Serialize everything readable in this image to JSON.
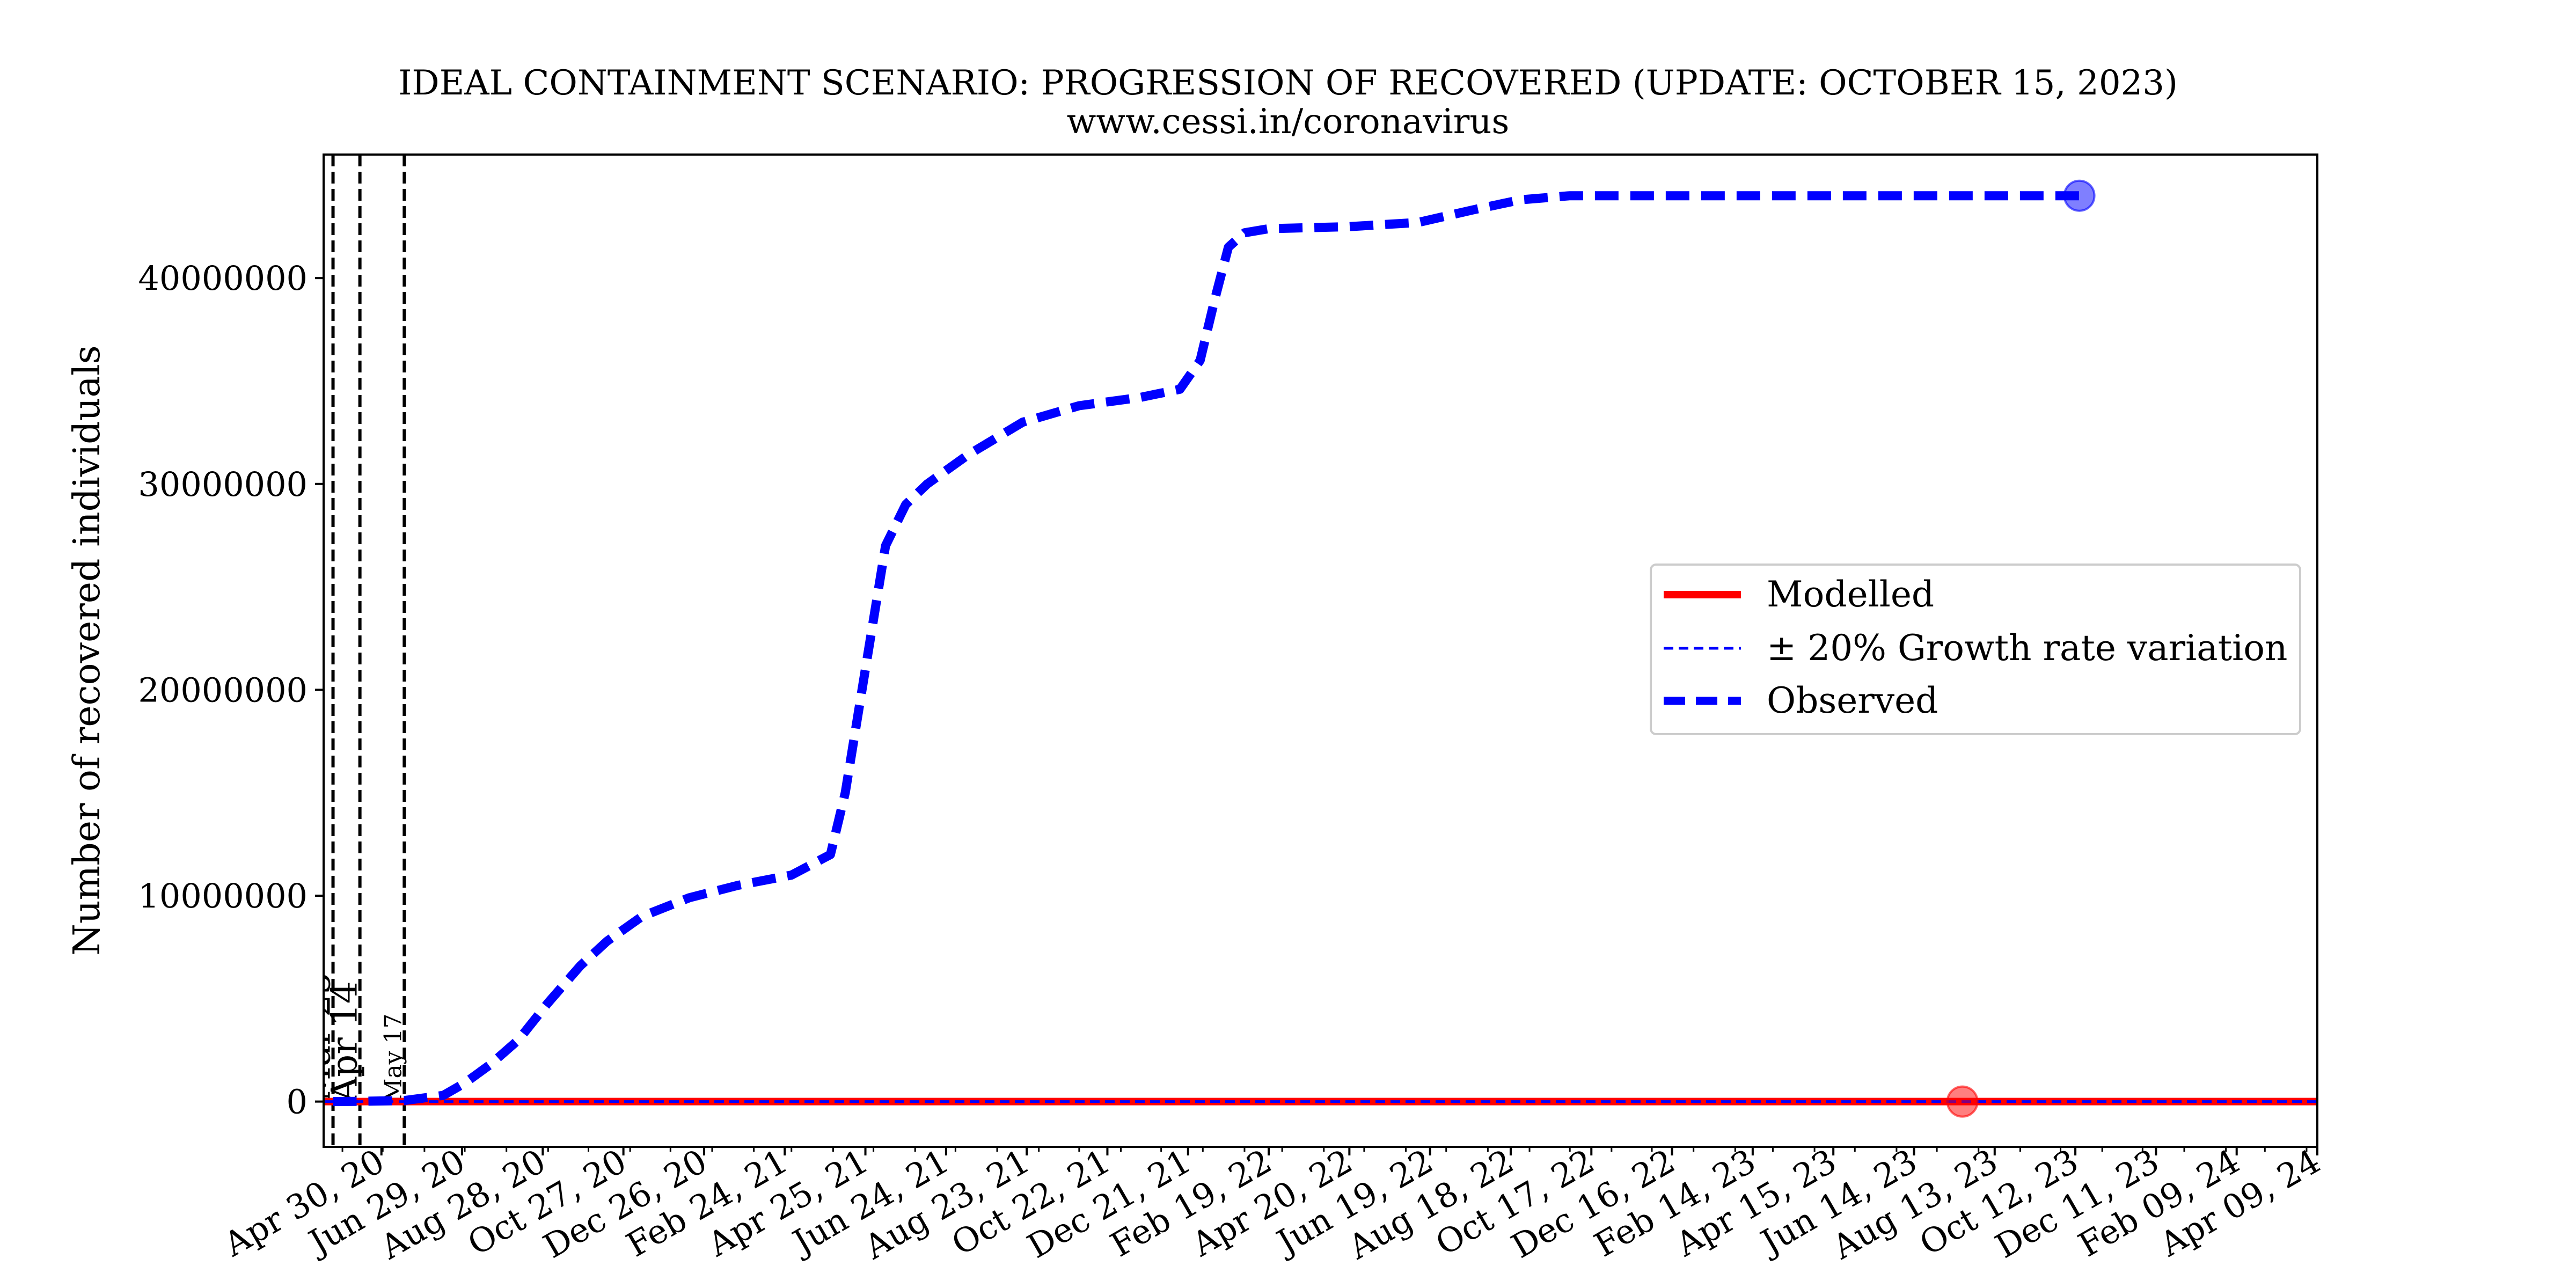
{
  "chart_data": {
    "type": "line",
    "title": "IDEAL CONTAINMENT SCENARIO: PROGRESSION OF RECOVERED (UPDATE: OCTOBER 15, 2023)",
    "subtitle": "www.cessi.in/coronavirus",
    "ylabel": "Number of recovered individuals",
    "xlabel": "",
    "xlim": [
      "2020-03-18",
      "2024-04-09"
    ],
    "ylim": [
      -2200000,
      46000000
    ],
    "y_ticks": [
      0,
      10000000,
      20000000,
      30000000,
      40000000
    ],
    "y_tick_labels": [
      "0",
      "10000000",
      "20000000",
      "30000000",
      "40000000"
    ],
    "x_tick_dates": [
      "2020-04-30",
      "2020-06-29",
      "2020-08-28",
      "2020-10-27",
      "2020-12-26",
      "2021-02-24",
      "2021-04-25",
      "2021-06-24",
      "2021-08-23",
      "2021-10-22",
      "2021-12-21",
      "2022-02-19",
      "2022-04-20",
      "2022-06-19",
      "2022-08-18",
      "2022-10-17",
      "2022-12-16",
      "2023-02-14",
      "2023-04-15",
      "2023-06-14",
      "2023-08-13",
      "2023-10-12",
      "2023-12-11",
      "2024-02-09",
      "2024-04-09"
    ],
    "x_tick_labels": [
      "Apr 30, 20",
      "Jun 29, 20",
      "Aug 28, 20",
      "Oct 27, 20",
      "Dec 26, 20",
      "Feb 24, 21",
      "Apr 25, 21",
      "Jun 24, 21",
      "Aug 23, 21",
      "Oct 22, 21",
      "Dec 21, 21",
      "Feb 19, 22",
      "Apr 20, 22",
      "Jun 19, 22",
      "Aug 18, 22",
      "Oct 17, 22",
      "Dec 16, 22",
      "Feb 14, 23",
      "Apr 15, 23",
      "Jun 14, 23",
      "Aug 13, 23",
      "Oct 12, 23",
      "Dec 11, 23",
      "Feb 09, 24",
      "Apr 09, 24"
    ],
    "vlines": [
      {
        "date": "2020-03-25",
        "label": "Mar 25"
      },
      {
        "date": "2020-04-14",
        "label": "Apr 14"
      },
      {
        "date": "2020-05-17",
        "label": "May 17"
      }
    ],
    "series": [
      {
        "name": "Modelled",
        "style": "solid",
        "color": "#ff0000",
        "x": [
          "2020-03-18",
          "2024-04-09"
        ],
        "y": [
          0,
          0
        ]
      },
      {
        "name": "± 20% Growth rate variation",
        "style": "dashed-thin",
        "color": "#0000ff",
        "x": [
          "2020-03-18",
          "2024-04-09"
        ],
        "y": [
          0,
          0
        ]
      },
      {
        "name": "Observed",
        "style": "dashed-thick",
        "color": "#0000ff",
        "x": [
          "2020-03-25",
          "2020-04-14",
          "2020-05-17",
          "2020-06-15",
          "2020-07-01",
          "2020-07-20",
          "2020-08-10",
          "2020-09-01",
          "2020-09-25",
          "2020-10-15",
          "2020-11-10",
          "2020-12-15",
          "2021-01-20",
          "2021-03-01",
          "2021-03-30",
          "2021-04-10",
          "2021-04-25",
          "2021-05-10",
          "2021-05-25",
          "2021-06-10",
          "2021-07-10",
          "2021-08-20",
          "2021-10-01",
          "2021-11-15",
          "2021-12-15",
          "2021-12-30",
          "2022-01-10",
          "2022-01-20",
          "2022-02-01",
          "2022-02-19",
          "2022-04-20",
          "2022-06-10",
          "2022-07-20",
          "2022-08-25",
          "2022-10-01",
          "2023-01-01",
          "2023-06-01",
          "2023-10-15"
        ],
        "y": [
          0,
          10000,
          50000,
          300000,
          900000,
          1800000,
          3000000,
          4800000,
          6600000,
          7800000,
          9000000,
          9900000,
          10500000,
          11000000,
          12000000,
          15000000,
          21000000,
          27000000,
          29000000,
          30000000,
          31400000,
          33000000,
          33800000,
          34200000,
          34600000,
          36000000,
          39000000,
          41500000,
          42200000,
          42400000,
          42500000,
          42700000,
          43300000,
          43800000,
          44000000,
          44000000,
          44000000,
          44000000
        ]
      }
    ],
    "markers": [
      {
        "series": "Modelled",
        "date": "2023-07-20",
        "value": 0,
        "color": "#ff0000"
      },
      {
        "series": "Observed",
        "date": "2023-10-15",
        "value": 44000000,
        "color": "#0000ff"
      }
    ],
    "legend": {
      "position": "right-center",
      "entries": [
        "Modelled",
        "± 20% Growth rate variation",
        "Observed"
      ]
    },
    "grid": false
  }
}
